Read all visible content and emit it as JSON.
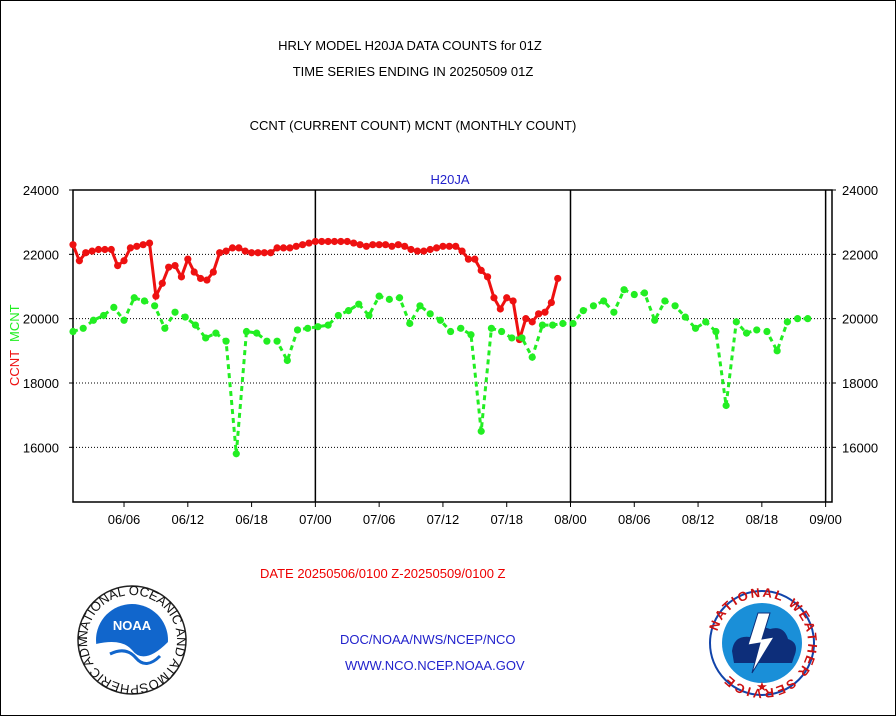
{
  "header": {
    "title_line1": "HRLY MODEL H20JA DATA COUNTS for 01Z",
    "title_line2": "TIME SERIES ENDING IN 20250509 01Z",
    "subtitle": "CCNT (CURRENT COUNT) MCNT (MONTHLY COUNT)"
  },
  "footer": {
    "date_range": "DATE 20250506/0100 Z-20250509/0100 Z",
    "org_path": "DOC/NOAA/NWS/NCEP/NCO",
    "url": "WWW.NCO.NCEP.NOAA.GOV"
  },
  "logos": {
    "noaa": {
      "text": "NOAA",
      "ring_text": "NATIONAL OCEANIC AND ATMOSPHERIC ADMINISTRATION • U.S. DEPARTMENT OF COMMERCE",
      "icon": "noaa-logo-icon"
    },
    "nws": {
      "ring_text": "NATIONAL WEATHER SERVICE",
      "icon": "nws-logo-icon"
    }
  },
  "colors": {
    "ccnt": "#ee1111",
    "mcnt": "#22ee22",
    "panel_title": "#2222cc"
  },
  "chart_data": {
    "type": "line",
    "title": "H20JA",
    "ylabel_ccnt": "CCNT",
    "ylabel_mcnt": "MCNT",
    "ylim": [
      14300,
      24000
    ],
    "yticks": [
      "24000",
      "22000",
      "20000",
      "18000",
      "16000"
    ],
    "ytick_values": [
      24000,
      22000,
      20000,
      18000,
      16000
    ],
    "xlim": [
      0,
      119
    ],
    "xticks": [
      {
        "label": "06/06",
        "x": 8
      },
      {
        "label": "06/12",
        "x": 18
      },
      {
        "label": "06/18",
        "x": 28
      },
      {
        "label": "07/00",
        "x": 38
      },
      {
        "label": "07/06",
        "x": 48
      },
      {
        "label": "07/12",
        "x": 58
      },
      {
        "label": "07/18",
        "x": 68
      },
      {
        "label": "08/00",
        "x": 78
      },
      {
        "label": "08/06",
        "x": 88
      },
      {
        "label": "08/12",
        "x": 98
      },
      {
        "label": "08/18",
        "x": 108
      },
      {
        "label": "09/00",
        "x": 118
      }
    ],
    "day_boundaries_x": [
      38,
      78,
      118
    ],
    "gridlines_y": [
      22000,
      20000,
      18000,
      16000
    ],
    "grid": true,
    "series": [
      {
        "name": "CCNT",
        "style": "solid",
        "values": [
          22300,
          21800,
          22050,
          22100,
          22150,
          22150,
          22150,
          21650,
          21800,
          22200,
          22250,
          22300,
          22350,
          20700,
          21100,
          21600,
          21650,
          21300,
          21850,
          21450,
          21250,
          21200,
          21450,
          22050,
          22100,
          22200,
          22200,
          22100,
          22050,
          22050,
          22050,
          22050,
          22200,
          22200,
          22200,
          22250,
          22300,
          22350,
          22400,
          22400,
          22400,
          22400,
          22400,
          22400,
          22350,
          22300,
          22250,
          22300,
          22300,
          22300,
          22250,
          22300,
          22250,
          22150,
          22100,
          22100,
          22150,
          22200,
          22250,
          22250,
          22250,
          22100,
          21850,
          21850,
          21500,
          21300,
          20650,
          20300,
          20650,
          20550,
          19350,
          20000,
          19900,
          20150,
          20200,
          20500,
          21250
        ]
      },
      {
        "name": "MCNT",
        "style": "dashed",
        "values": [
          19600,
          19700,
          19950,
          20100,
          20350,
          19950,
          20650,
          20550,
          20400,
          19700,
          20200,
          20050,
          19800,
          19400,
          19550,
          19300,
          15800,
          19600,
          19550,
          19300,
          19300,
          18700,
          19650,
          19700,
          19750,
          19800,
          20100,
          20250,
          20450,
          20100,
          20700,
          20600,
          20650,
          19850,
          20400,
          20150,
          19950,
          19600,
          19700,
          19500,
          16500,
          19700,
          19600,
          19400,
          19400,
          18800,
          19800,
          19800,
          19850,
          19850,
          20250,
          20400,
          20550,
          20200,
          20900,
          20750,
          20800,
          19950,
          20550,
          20400,
          20050,
          19700,
          19900,
          19600,
          17300,
          19900,
          19550,
          19650,
          19600,
          19000,
          19900,
          20000,
          20000
        ]
      }
    ],
    "series_x": {
      "CCNT": [
        0,
        1,
        2,
        3,
        4,
        5,
        6,
        7,
        8,
        9,
        10,
        11,
        12,
        13,
        14,
        15,
        16,
        17,
        18,
        19,
        20,
        21,
        22,
        23,
        24,
        25,
        26,
        27,
        28,
        29,
        30,
        31,
        32,
        33,
        34,
        35,
        36,
        37,
        38,
        39,
        40,
        41,
        42,
        43,
        44,
        45,
        46,
        47,
        48,
        49,
        50,
        51,
        52,
        53,
        54,
        55,
        56,
        57,
        58,
        59,
        60,
        61,
        62,
        63,
        64,
        65,
        66,
        67,
        68,
        69,
        70,
        71,
        72,
        73,
        74,
        75,
        76
      ],
      "MCNT": [
        0,
        1.6,
        3.2,
        4.8,
        6.4,
        8,
        9.6,
        11.2,
        12.8,
        14.4,
        16,
        17.6,
        19.2,
        20.8,
        22.4,
        24,
        25.6,
        27.2,
        28.8,
        30.4,
        32,
        33.6,
        35.2,
        36.8,
        38.4,
        40,
        41.6,
        43.2,
        44.8,
        46.4,
        48,
        49.6,
        51.2,
        52.8,
        54.4,
        56,
        57.6,
        59.2,
        60.8,
        62.4,
        64,
        65.6,
        67.2,
        68.8,
        70.4,
        72,
        73.6,
        75.2,
        76.8,
        78.4,
        80,
        81.6,
        83.2,
        84.8,
        86.4,
        88,
        89.6,
        91.2,
        92.8,
        94.4,
        96,
        97.6,
        99.2,
        100.8,
        102.4,
        104,
        105.6,
        107.2,
        108.8,
        110.4,
        112,
        113.6,
        115.2
      ]
    }
  }
}
